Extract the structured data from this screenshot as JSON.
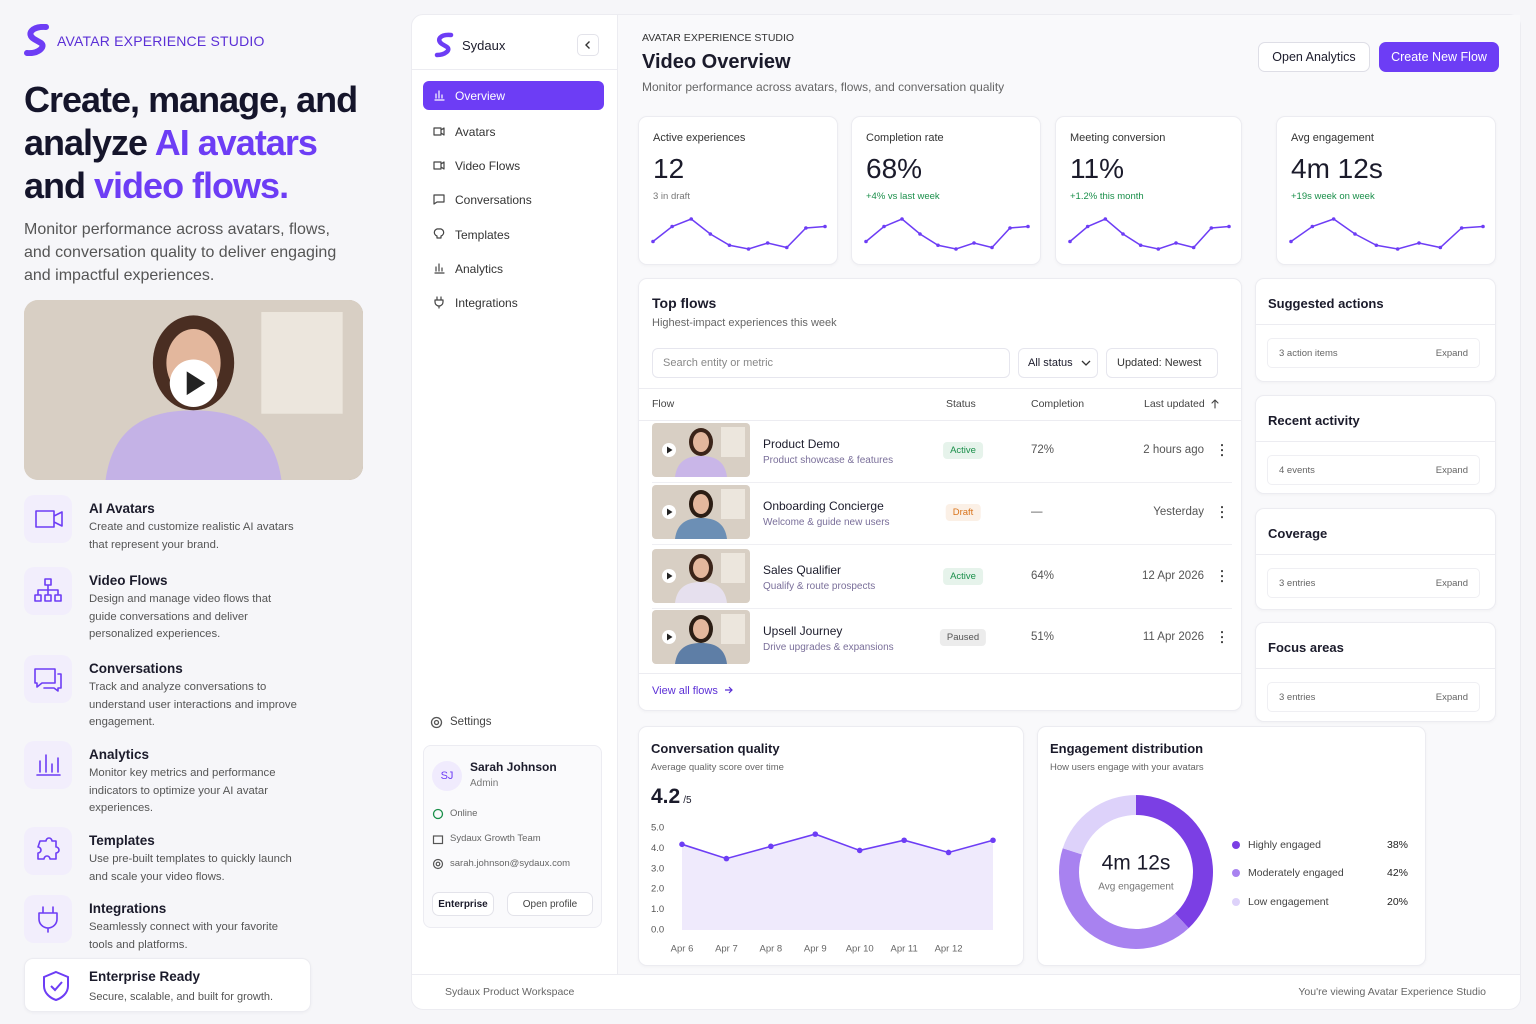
{
  "brand": {
    "name": "AVATAR EXPERIENCE STUDIO"
  },
  "hero": {
    "headline": [
      "Create, manage, and analyze",
      "AI avatars",
      "and",
      "video flows."
    ],
    "description": "Monitor performance across avatars, flows, and conversation quality to deliver engaging and impactful experiences."
  },
  "features": [
    {
      "title": "AI Avatars",
      "description": "Create and customize realistic AI avatars that represent your brand."
    },
    {
      "title": "Video Flows",
      "description": "Design and manage video flows that guide conversations and deliver personalized experiences."
    },
    {
      "title": "Conversations",
      "description": "Track and analyze conversations to understand user interactions and improve engagement."
    },
    {
      "title": "Analytics",
      "description": "Monitor key metrics and performance indicators to optimize your AI avatar experiences."
    },
    {
      "title": "Templates",
      "description": "Use pre-built templates to quickly launch and scale your video flows."
    },
    {
      "title": "Integrations",
      "description": "Seamlessly connect with your favorite tools and platforms."
    }
  ],
  "enterprise": {
    "title": "Enterprise Ready",
    "description": "Secure, scalable, and built for growth."
  },
  "sidebar": {
    "brand": "Sydaux",
    "nav": [
      "Overview",
      "Avatars",
      "Video Flows",
      "Conversations",
      "Templates",
      "Analytics",
      "Integrations"
    ],
    "settings": "Settings",
    "profile": {
      "initials": "SJ",
      "name": "Sarah Johnson",
      "role": "Admin",
      "status": "Online",
      "team": "Sydaux Growth Team",
      "email": "sarah.johnson@sydaux.com",
      "plan": "Enterprise",
      "action": "Open profile"
    }
  },
  "header": {
    "eyebrow": "AVATAR EXPERIENCE STUDIO",
    "title": "Video Overview",
    "subtitle": "Monitor performance across avatars, flows, and conversation quality",
    "buttons": [
      "Open Analytics",
      "Create New Flow"
    ]
  },
  "kpis": [
    {
      "label": "Active experiences",
      "value": "12",
      "note": "3 in draft",
      "note_color": "#777777",
      "trend": [
        2,
        4,
        5,
        3,
        1.5,
        1,
        1.8,
        1.2,
        3.8,
        4
      ]
    },
    {
      "label": "Completion rate",
      "value": "68%",
      "note": "+4% vs last week",
      "note_color": "#1a8f4a",
      "trend": [
        2,
        4,
        5,
        3,
        1.5,
        1,
        1.8,
        1.2,
        3.8,
        4
      ]
    },
    {
      "label": "Meeting conversion",
      "value": "11%",
      "note": "+1.2% this month",
      "note_color": "#1a8f4a",
      "trend": [
        2,
        4,
        5,
        3,
        1.5,
        1,
        1.8,
        1.2,
        3.8,
        4
      ]
    },
    {
      "label": "Avg engagement",
      "value": "4m 12s",
      "note": "+19s week on week",
      "note_color": "#1a8f4a",
      "trend": [
        2,
        4,
        5,
        3,
        1.5,
        1,
        1.8,
        1.2,
        3.8,
        4
      ]
    }
  ],
  "top_flows": {
    "title": "Top flows",
    "subtitle": "Highest-impact experiences this week",
    "search_placeholder": "Search entity or metric",
    "filter": "All status",
    "sort": "Updated: Newest",
    "columns": [
      "Flow",
      "Status",
      "Completion",
      "Last updated"
    ],
    "rows": [
      {
        "name": "Product Demo",
        "description": "Product showcase & features",
        "status": "Active",
        "badge_color": "#1a8f4a",
        "completion": "72%",
        "updated": "2 hours ago"
      },
      {
        "name": "Onboarding Concierge",
        "description": "Welcome & guide new users",
        "status": "Draft",
        "badge_color": "#d9731a",
        "completion": "—",
        "updated": "Yesterday"
      },
      {
        "name": "Sales Qualifier",
        "description": "Qualify & route prospects",
        "status": "Active",
        "badge_color": "#1a8f4a",
        "completion": "64%",
        "updated": "12 Apr 2026"
      },
      {
        "name": "Upsell Journey",
        "description": "Drive upgrades & expansions",
        "status": "Paused",
        "badge_color": "#555555",
        "completion": "51%",
        "updated": "11 Apr 2026"
      }
    ],
    "link": "View all flows"
  },
  "side_panels": [
    {
      "title": "Suggested actions",
      "summary": "3 action items",
      "action": "Expand"
    },
    {
      "title": "Recent activity",
      "summary": "4 events",
      "action": "Expand"
    },
    {
      "title": "Coverage",
      "summary": "3 entries",
      "action": "Expand"
    },
    {
      "title": "Focus areas",
      "summary": "3 entries",
      "action": "Expand"
    }
  ],
  "quality": {
    "title": "Conversation quality",
    "subtitle": "Average quality score over time",
    "score": "4.2",
    "scale": "/5",
    "chart_data": {
      "type": "line",
      "categories": [
        "Apr 6",
        "Apr 7",
        "Apr 8",
        "Apr 9",
        "Apr 10",
        "Apr 11",
        "Apr 12",
        null
      ],
      "series": [
        {
          "name": "Quality",
          "color": "#6d3df5",
          "values": [
            4.2,
            3.5,
            4.1,
            4.7,
            3.9,
            4.4,
            3.8,
            4.4
          ]
        }
      ],
      "ylim": [
        0,
        5
      ],
      "yticks": [
        {
          "value": 0,
          "label": "0.0"
        },
        {
          "value": 1,
          "label": "1.0"
        },
        {
          "value": 2,
          "label": "2.0"
        },
        {
          "value": 3,
          "label": "3.0"
        },
        {
          "value": 4,
          "label": "4.0"
        },
        {
          "value": 5,
          "label": "5.0"
        }
      ],
      "area_color": "#efeafc"
    }
  },
  "engagement": {
    "title": "Engagement distribution",
    "subtitle": "How users engage with your avatars",
    "center_value": "4m 12s",
    "center_label": "Avg engagement",
    "chart_data": {
      "type": "donut",
      "categories": [
        "Highly engaged",
        "Moderately engaged",
        "Low engagement"
      ],
      "values": [
        38,
        42,
        20
      ],
      "value_labels": [
        "38%",
        "42%",
        "20%"
      ],
      "colors": [
        "#7b3fe4",
        "#a882f0",
        "#ddd2fa"
      ]
    }
  },
  "footer": {
    "left": "Sydaux Product Workspace",
    "right": "You're viewing Avatar Experience Studio"
  }
}
